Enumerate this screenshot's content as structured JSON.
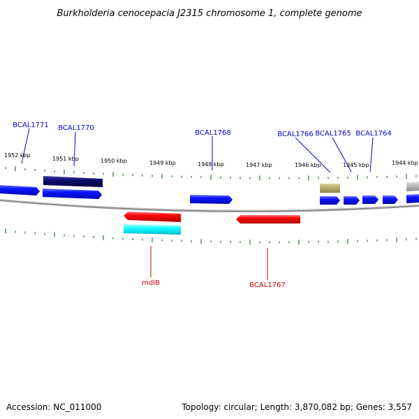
{
  "title": "Burkholderia cenocepacia J2315 chromosome 1, complete genome",
  "footer": {
    "accession": "Accession: NC_011000",
    "summary": "Topology: circular; Length: 3,870,082 bp; Genes: 3,557"
  },
  "colors": {
    "backbone": "#8c8c8c",
    "tick": "#2a7a2a",
    "label_forward": "#0000cc",
    "label_reverse": "#cc0000",
    "gene_blue": "#0a14ff",
    "gene_navy": "#0b0b6e",
    "gene_red": "#ff0a0a",
    "gene_cyan": "#12ffff",
    "gene_olive": "#b9b46a",
    "gene_gray": "#bdbdbd"
  },
  "kbp_labels": [
    "1952 kbp",
    "1951 kbp",
    "1950 kbp",
    "1949 kbp",
    "1948 kbp",
    "1947 kbp",
    "1946 kbp",
    "1945 kbp",
    "1944 kbp"
  ],
  "gene_labels": {
    "BCAL1771": "BCAL1771",
    "BCAL1770": "BCAL1770",
    "BCAL1768": "BCAL1768",
    "BCAL1766": "BCAL1766",
    "BCAL1765": "BCAL1765",
    "BCAL1764": "BCAL1764",
    "mdlB": "mdlB",
    "BCAL1767": "BCAL1767"
  }
}
